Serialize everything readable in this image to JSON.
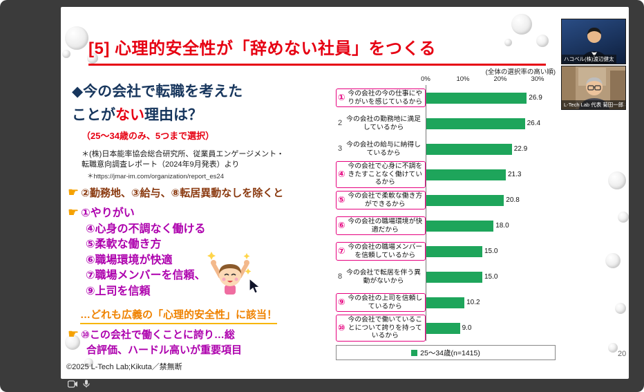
{
  "app": {
    "page_number": "20"
  },
  "icons": {
    "pointer": "☛"
  },
  "participants": [
    {
      "name": "ハコベル(株)渡辺健太"
    },
    {
      "name": "L-Tech Lab 代表 菊田一郎 様"
    }
  ],
  "slide": {
    "title": "[5] 心理的安全性が「辞めない社員」をつくる",
    "heading_line1": "◆今の会社で転職を考えた",
    "heading_line2_pre": "ことが",
    "heading_line2_emphasis": "ない",
    "heading_line2_post": "理由は？",
    "heading_condition": "（25～34歳のみ、5つまで選択）",
    "source_line1": "＊(株)日本能率協会総合研究所、従業員エンゲージメント・",
    "source_line2": "転職意向調査レポート（2024年9月発表）より",
    "source_line3": "＊https://jmar-im.com/organization/report_es24",
    "point_exclude": "②勤務地、③給与、⑧転居異動なしを除くと",
    "point_items": [
      "①やりがい",
      "④心身の不調なく働ける",
      "⑤柔軟な働き方",
      "⑥職場環境が快適",
      "⑦職場メンバーを信頼、",
      "⑨上司を信頼"
    ],
    "conclusion": "…どれも広義の「心理的安全性」に該当！",
    "pride_line1": "⑩この会社で働くことに誇り…総",
    "pride_line2": "合評価、ハードル高いが重要項目",
    "copyright": "©2025 L-Tech Lab;Kikuta／禁無断"
  },
  "chart_data": {
    "type": "bar",
    "orientation": "horizontal",
    "title_note": "(全体の選択率の高い順)",
    "x_ticks": [
      "0%",
      "10%",
      "20%",
      "30%"
    ],
    "xlim": [
      0,
      30
    ],
    "unit": "%",
    "legend": "25～34歳(n=1415)",
    "legend_position": "bottom",
    "bar_color": "#1ea55b",
    "highlight_color": "#e6007e",
    "rows": [
      {
        "num": "①",
        "label": "今の会社の今の仕事にやりがいを感じているから",
        "value": 26.9,
        "highlight": true
      },
      {
        "num": "2",
        "label": "今の会社の勤務地に満足しているから",
        "value": 26.4,
        "highlight": false
      },
      {
        "num": "3",
        "label": "今の会社の給与に納得しているから",
        "value": 22.9,
        "highlight": false
      },
      {
        "num": "④",
        "label": "今の会社で心身に不調をきたすことなく働けているから",
        "value": 21.3,
        "highlight": true
      },
      {
        "num": "⑤",
        "label": "今の会社で柔軟な働き方ができるから",
        "value": 20.8,
        "highlight": true
      },
      {
        "num": "⑥",
        "label": "今の会社の職場環境が快適だから",
        "value": 18.0,
        "highlight": true
      },
      {
        "num": "⑦",
        "label": "今の会社の職場メンバーを信頼しているから",
        "value": 15.0,
        "highlight": true
      },
      {
        "num": "8",
        "label": "今の会社で転居を伴う異動がないから",
        "value": 15.0,
        "highlight": false
      },
      {
        "num": "⑨",
        "label": "今の会社の上司を信頼しているから",
        "value": 10.2,
        "highlight": true
      },
      {
        "num": "⑩",
        "label": "今の会社で働いていることについて誇りを持っているから",
        "value": 9.0,
        "highlight": true
      }
    ]
  }
}
